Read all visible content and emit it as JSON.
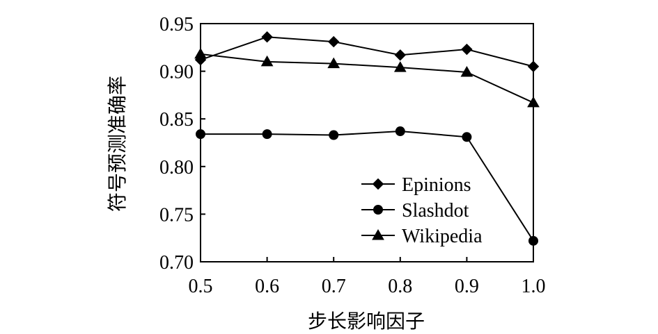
{
  "chart_data": {
    "type": "line",
    "xlabel": "步长影响因子",
    "ylabel": "符号预测准确率",
    "x": [
      0.5,
      0.6,
      0.7,
      0.8,
      0.9,
      1.0
    ],
    "x_tick_labels": [
      "0.5",
      "0.6",
      "0.7",
      "0.8",
      "0.9",
      "1.0"
    ],
    "y_tick_labels": [
      "0.70",
      "0.75",
      "0.80",
      "0.85",
      "0.90",
      "0.95"
    ],
    "y_ticks": [
      0.7,
      0.75,
      0.8,
      0.85,
      0.9,
      0.95
    ],
    "xlim": [
      0.5,
      1.0
    ],
    "ylim": [
      0.7,
      0.95
    ],
    "grid": false,
    "legend_position": "lower-right",
    "series": [
      {
        "name": "Epinions",
        "marker": "diamond",
        "color": "#000000",
        "values": [
          0.912,
          0.936,
          0.931,
          0.917,
          0.923,
          0.905
        ]
      },
      {
        "name": "Slashdot",
        "marker": "circle",
        "color": "#000000",
        "values": [
          0.834,
          0.834,
          0.833,
          0.837,
          0.831,
          0.722
        ]
      },
      {
        "name": "Wikipedia",
        "marker": "triangle",
        "color": "#000000",
        "values": [
          0.918,
          0.91,
          0.908,
          0.904,
          0.899,
          0.867
        ]
      }
    ]
  }
}
